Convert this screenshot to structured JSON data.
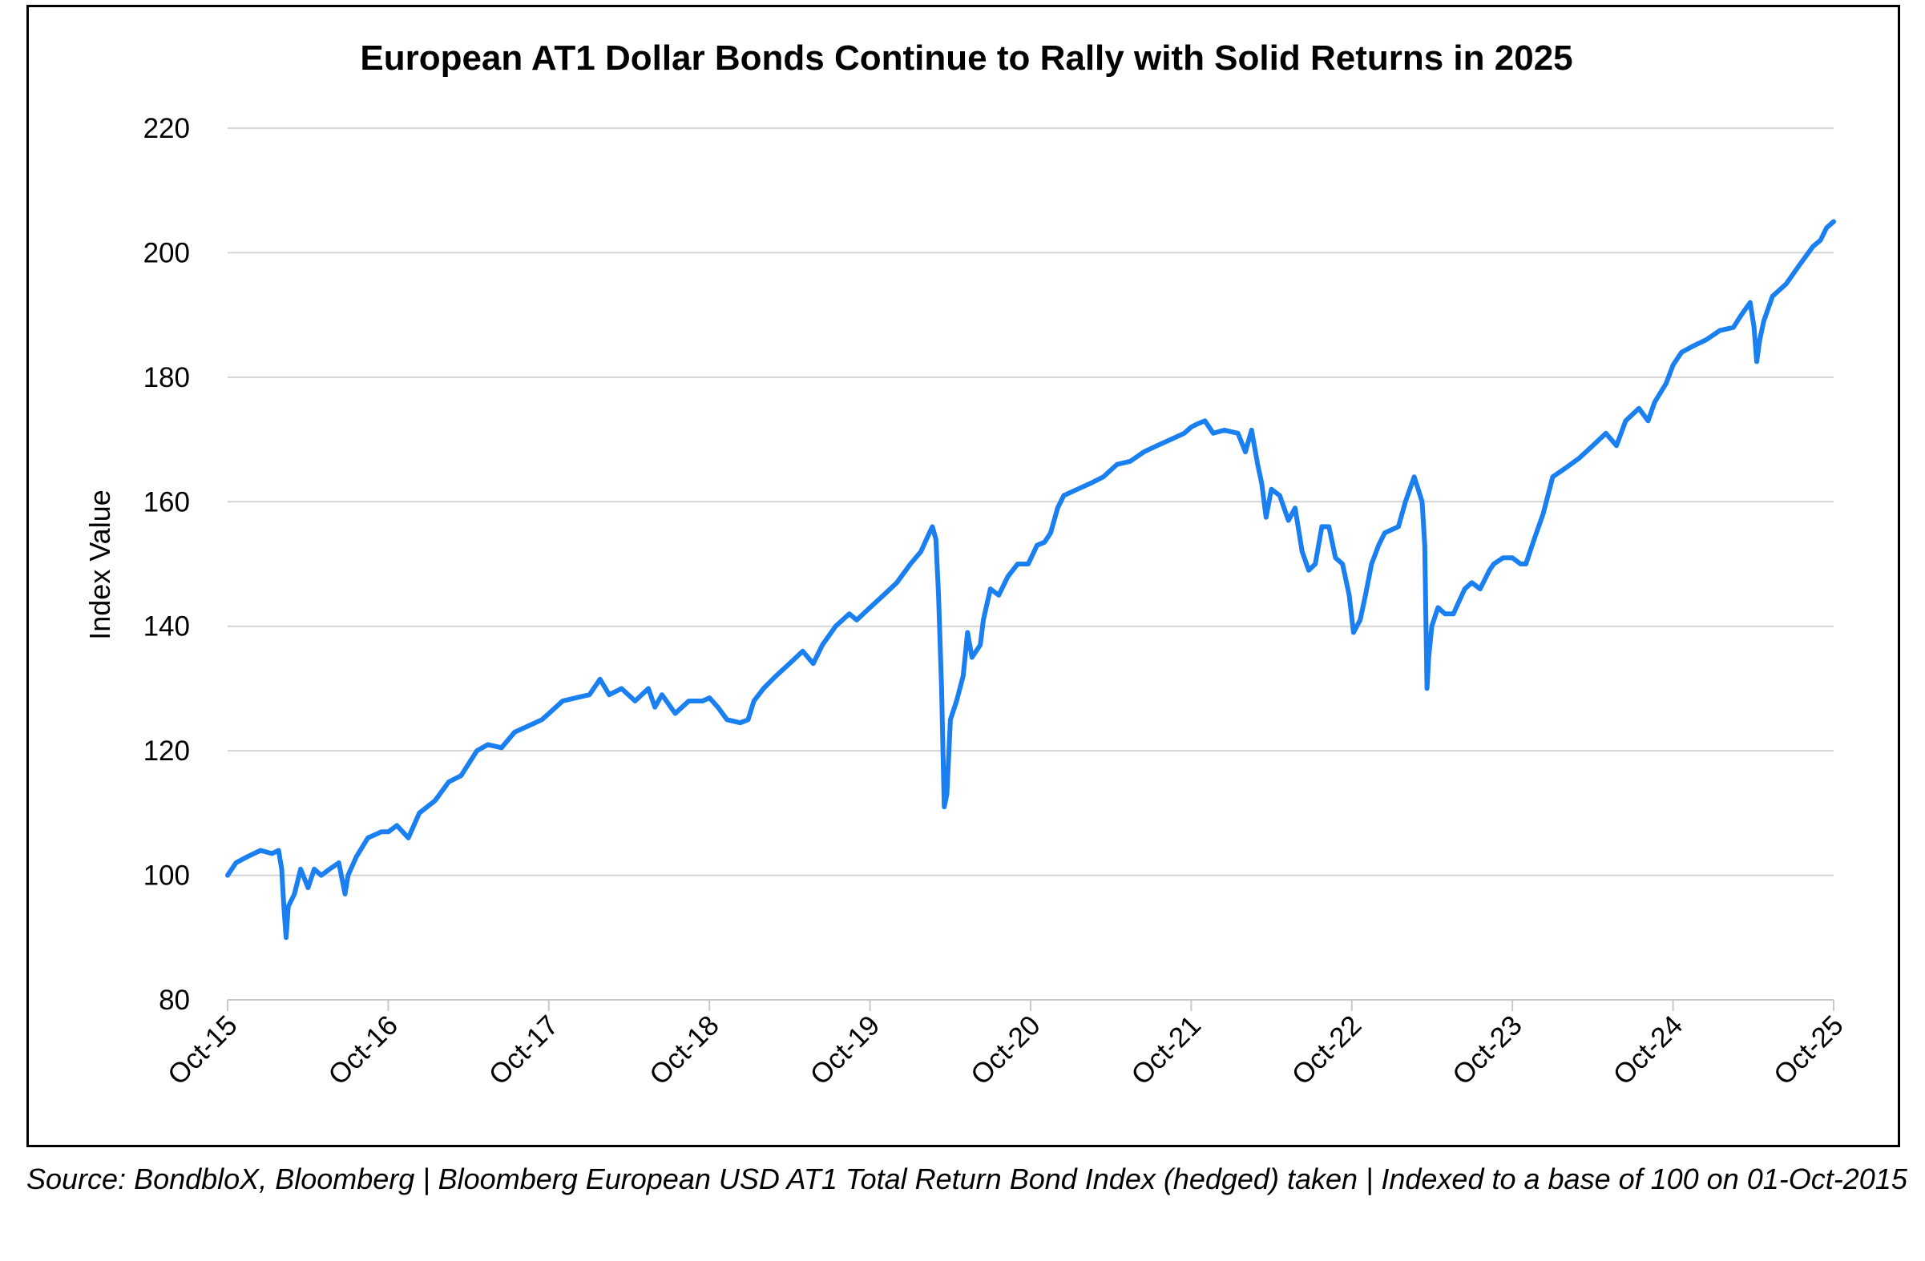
{
  "chart_data": {
    "type": "line",
    "title": "European AT1 Dollar Bonds Continue to Rally with Solid Returns in 2025",
    "xlabel": "",
    "ylabel": "Index Value",
    "ylim": [
      80,
      220
    ],
    "yticks": [
      80,
      100,
      120,
      140,
      160,
      180,
      200,
      220
    ],
    "xlim": [
      "2015-10-01",
      "2025-10-01"
    ],
    "xtick_labels": [
      "Oct-15",
      "Oct-16",
      "Oct-17",
      "Oct-18",
      "Oct-19",
      "Oct-20",
      "Oct-21",
      "Oct-22",
      "Oct-23",
      "Oct-24",
      "Oct-25"
    ],
    "grid": "horizontal",
    "legend": "none",
    "series": [
      {
        "name": "",
        "color": "#1a7ff0",
        "points": [
          [
            "2015-10-01",
            100
          ],
          [
            "2015-10-20",
            102
          ],
          [
            "2015-11-15",
            103
          ],
          [
            "2015-12-15",
            104
          ],
          [
            "2016-01-10",
            103.5
          ],
          [
            "2016-01-25",
            104
          ],
          [
            "2016-02-01",
            101
          ],
          [
            "2016-02-06",
            95
          ],
          [
            "2016-02-11",
            90
          ],
          [
            "2016-02-16",
            95
          ],
          [
            "2016-03-01",
            97
          ],
          [
            "2016-03-15",
            101
          ],
          [
            "2016-04-01",
            98
          ],
          [
            "2016-04-15",
            101
          ],
          [
            "2016-05-01",
            100
          ],
          [
            "2016-05-20",
            101
          ],
          [
            "2016-06-10",
            102
          ],
          [
            "2016-06-24",
            97
          ],
          [
            "2016-07-01",
            100
          ],
          [
            "2016-07-20",
            103
          ],
          [
            "2016-08-15",
            106
          ],
          [
            "2016-09-15",
            107
          ],
          [
            "2016-10-01",
            107
          ],
          [
            "2016-10-20",
            108
          ],
          [
            "2016-11-15",
            106
          ],
          [
            "2016-12-10",
            110
          ],
          [
            "2017-01-15",
            112
          ],
          [
            "2017-02-15",
            115
          ],
          [
            "2017-03-15",
            116
          ],
          [
            "2017-04-20",
            120
          ],
          [
            "2017-05-15",
            121
          ],
          [
            "2017-06-15",
            120.5
          ],
          [
            "2017-07-15",
            123
          ],
          [
            "2017-08-15",
            124
          ],
          [
            "2017-09-15",
            125
          ],
          [
            "2017-10-01",
            126
          ],
          [
            "2017-11-01",
            128
          ],
          [
            "2017-12-01",
            128.5
          ],
          [
            "2018-01-01",
            129
          ],
          [
            "2018-01-25",
            131.5
          ],
          [
            "2018-02-15",
            129
          ],
          [
            "2018-03-15",
            130
          ],
          [
            "2018-04-15",
            128
          ],
          [
            "2018-05-15",
            130
          ],
          [
            "2018-05-30",
            127
          ],
          [
            "2018-06-15",
            129
          ],
          [
            "2018-07-15",
            126
          ],
          [
            "2018-08-15",
            128
          ],
          [
            "2018-09-15",
            128
          ],
          [
            "2018-10-01",
            128.5
          ],
          [
            "2018-10-20",
            127
          ],
          [
            "2018-11-10",
            125
          ],
          [
            "2018-12-10",
            124.5
          ],
          [
            "2018-12-28",
            125
          ],
          [
            "2019-01-10",
            128
          ],
          [
            "2019-02-01",
            130
          ],
          [
            "2019-03-01",
            132
          ],
          [
            "2019-04-01",
            134
          ],
          [
            "2019-05-01",
            136
          ],
          [
            "2019-05-25",
            134
          ],
          [
            "2019-06-15",
            137
          ],
          [
            "2019-07-15",
            140
          ],
          [
            "2019-08-15",
            142
          ],
          [
            "2019-09-01",
            141
          ],
          [
            "2019-10-01",
            143
          ],
          [
            "2019-11-01",
            145
          ],
          [
            "2019-12-01",
            147
          ],
          [
            "2020-01-01",
            150
          ],
          [
            "2020-01-25",
            152
          ],
          [
            "2020-02-10",
            154.5
          ],
          [
            "2020-02-20",
            156
          ],
          [
            "2020-02-28",
            154
          ],
          [
            "2020-03-05",
            145
          ],
          [
            "2020-03-12",
            130
          ],
          [
            "2020-03-18",
            111
          ],
          [
            "2020-03-24",
            113
          ],
          [
            "2020-04-01",
            125
          ],
          [
            "2020-04-15",
            128
          ],
          [
            "2020-04-30",
            132
          ],
          [
            "2020-05-10",
            139
          ],
          [
            "2020-05-20",
            135
          ],
          [
            "2020-06-08",
            137
          ],
          [
            "2020-06-15",
            141
          ],
          [
            "2020-07-01",
            146
          ],
          [
            "2020-07-20",
            145
          ],
          [
            "2020-08-10",
            148
          ],
          [
            "2020-09-01",
            150
          ],
          [
            "2020-09-25",
            150
          ],
          [
            "2020-10-15",
            153
          ],
          [
            "2020-11-01",
            153.5
          ],
          [
            "2020-11-15",
            155
          ],
          [
            "2020-12-01",
            159
          ],
          [
            "2020-12-15",
            161
          ],
          [
            "2021-01-15",
            162
          ],
          [
            "2021-02-15",
            163
          ],
          [
            "2021-03-15",
            164
          ],
          [
            "2021-04-15",
            166
          ],
          [
            "2021-05-15",
            166.5
          ],
          [
            "2021-06-15",
            168
          ],
          [
            "2021-07-15",
            169
          ],
          [
            "2021-08-15",
            170
          ],
          [
            "2021-09-15",
            171
          ],
          [
            "2021-10-01",
            172
          ],
          [
            "2021-10-15",
            172.5
          ],
          [
            "2021-11-01",
            173
          ],
          [
            "2021-11-20",
            171
          ],
          [
            "2021-12-15",
            171.5
          ],
          [
            "2022-01-15",
            171
          ],
          [
            "2022-02-01",
            168
          ],
          [
            "2022-02-15",
            171.5
          ],
          [
            "2022-03-01",
            166
          ],
          [
            "2022-03-10",
            163
          ],
          [
            "2022-03-20",
            157.5
          ],
          [
            "2022-04-01",
            162
          ],
          [
            "2022-04-20",
            161
          ],
          [
            "2022-05-10",
            157
          ],
          [
            "2022-05-25",
            159
          ],
          [
            "2022-06-10",
            152
          ],
          [
            "2022-06-25",
            149
          ],
          [
            "2022-07-10",
            150
          ],
          [
            "2022-07-25",
            156
          ],
          [
            "2022-08-10",
            156
          ],
          [
            "2022-08-25",
            151
          ],
          [
            "2022-09-10",
            150
          ],
          [
            "2022-09-25",
            145
          ],
          [
            "2022-10-05",
            139
          ],
          [
            "2022-10-20",
            141
          ],
          [
            "2022-11-01",
            145
          ],
          [
            "2022-11-15",
            150
          ],
          [
            "2022-12-01",
            153
          ],
          [
            "2022-12-15",
            155
          ],
          [
            "2023-01-15",
            156
          ],
          [
            "2023-01-31",
            160
          ],
          [
            "2023-02-20",
            164
          ],
          [
            "2023-03-01",
            162
          ],
          [
            "2023-03-10",
            160
          ],
          [
            "2023-03-16",
            153
          ],
          [
            "2023-03-21",
            130
          ],
          [
            "2023-03-25",
            135
          ],
          [
            "2023-04-01",
            140
          ],
          [
            "2023-04-15",
            143
          ],
          [
            "2023-05-01",
            142
          ],
          [
            "2023-05-20",
            142
          ],
          [
            "2023-06-15",
            146
          ],
          [
            "2023-07-01",
            147
          ],
          [
            "2023-07-20",
            146
          ],
          [
            "2023-08-10",
            149
          ],
          [
            "2023-08-20",
            150
          ],
          [
            "2023-09-10",
            151
          ],
          [
            "2023-10-01",
            151
          ],
          [
            "2023-10-20",
            150
          ],
          [
            "2023-11-01",
            150
          ],
          [
            "2023-11-20",
            154
          ],
          [
            "2023-12-10",
            158
          ],
          [
            "2024-01-01",
            164
          ],
          [
            "2024-02-01",
            165.5
          ],
          [
            "2024-03-01",
            167
          ],
          [
            "2024-04-01",
            169
          ],
          [
            "2024-05-01",
            171
          ],
          [
            "2024-05-25",
            169
          ],
          [
            "2024-06-15",
            173
          ],
          [
            "2024-07-15",
            175
          ],
          [
            "2024-08-05",
            173
          ],
          [
            "2024-08-20",
            176
          ],
          [
            "2024-09-15",
            179
          ],
          [
            "2024-10-01",
            182
          ],
          [
            "2024-10-20",
            184
          ],
          [
            "2024-11-15",
            185
          ],
          [
            "2024-12-15",
            186
          ],
          [
            "2025-01-15",
            187.5
          ],
          [
            "2025-02-15",
            188
          ],
          [
            "2025-03-05",
            190
          ],
          [
            "2025-03-25",
            192
          ],
          [
            "2025-04-03",
            188
          ],
          [
            "2025-04-09",
            182.5
          ],
          [
            "2025-04-16",
            186
          ],
          [
            "2025-04-25",
            189
          ],
          [
            "2025-05-15",
            193
          ],
          [
            "2025-06-15",
            195
          ],
          [
            "2025-07-15",
            198
          ],
          [
            "2025-08-15",
            201
          ],
          [
            "2025-09-01",
            202
          ],
          [
            "2025-09-15",
            204
          ],
          [
            "2025-10-01",
            205
          ]
        ]
      }
    ]
  },
  "source_note": "Source: BondbloX, Bloomberg | Bloomberg European USD AT1 Total Return Bond Index (hedged) taken | Indexed to a base of 100 on 01-Oct-2015"
}
